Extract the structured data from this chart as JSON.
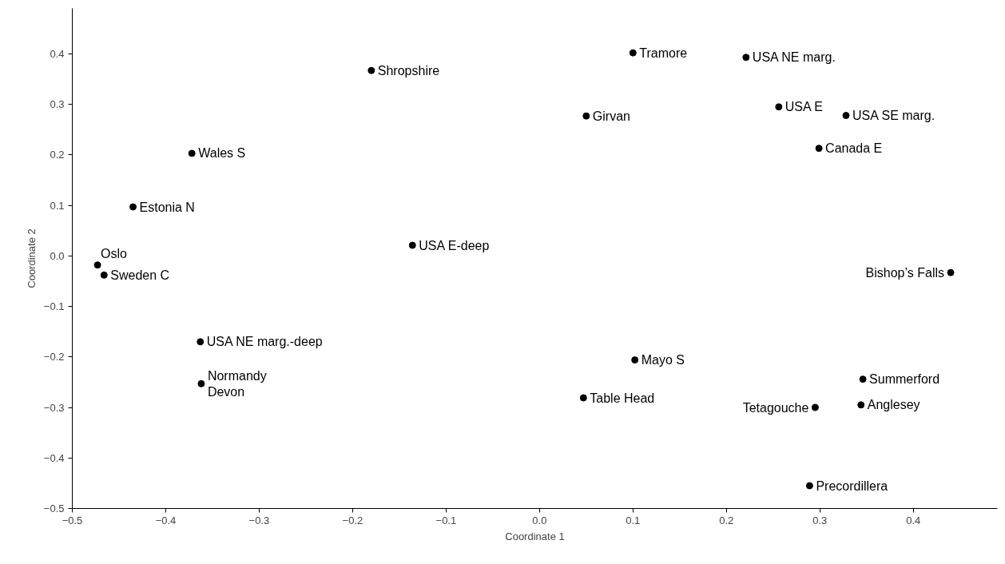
{
  "chart_data": {
    "type": "scatter",
    "xlabel": "Coordinate 1",
    "ylabel": "Coordinate 2",
    "xlim": [
      -0.5,
      0.49
    ],
    "ylim": [
      -0.5,
      0.49
    ],
    "xticks": [
      -0.5,
      -0.4,
      -0.3,
      -0.2,
      -0.1,
      {
        "value": 0,
        "label": "0.0"
      },
      0.1,
      0.2,
      0.3,
      0.4
    ],
    "yticks": [
      -0.5,
      -0.4,
      -0.3,
      -0.2,
      -0.1,
      {
        "value": 0,
        "label": "0.0"
      },
      0.1,
      0.2,
      0.3,
      0.4
    ],
    "grid": false,
    "marker": "circle",
    "series": [
      {
        "color": "#000000",
        "x": [
          -0.18,
          -0.372,
          -0.435,
          -0.473,
          -0.466,
          -0.136,
          -0.363,
          -0.362,
          0.1,
          0.05,
          0.221,
          0.256,
          0.328,
          0.299,
          0.102,
          0.047,
          0.44,
          0.346,
          0.344,
          0.295,
          0.289
        ],
        "values": [
          0.367,
          0.203,
          0.097,
          -0.018,
          -0.038,
          0.021,
          -0.17,
          -0.253,
          0.402,
          0.277,
          0.393,
          0.295,
          0.278,
          0.213,
          -0.206,
          -0.281,
          -0.033,
          -0.244,
          -0.295,
          -0.3,
          -0.455
        ]
      }
    ],
    "annotations": [
      {
        "text": "Shropshire",
        "x": -0.18,
        "y": 0.367
      },
      {
        "text": "Wales S",
        "x": -0.372,
        "y": 0.203
      },
      {
        "text": "Estonia N",
        "x": -0.435,
        "y": 0.097
      },
      {
        "text": "Oslo",
        "x": -0.473,
        "y": -0.018
      },
      {
        "text": "Sweden C",
        "x": -0.466,
        "y": -0.038
      },
      {
        "text": "USA E-deep",
        "x": -0.136,
        "y": 0.021
      },
      {
        "text": "USA NE marg.-deep",
        "x": -0.363,
        "y": -0.17
      },
      {
        "text": "Normandy\nDevon",
        "x": -0.362,
        "y": -0.253
      },
      {
        "text": "Tramore",
        "x": 0.1,
        "y": 0.402
      },
      {
        "text": "Girvan",
        "x": 0.05,
        "y": 0.277
      },
      {
        "text": "USA NE marg.",
        "x": 0.221,
        "y": 0.393
      },
      {
        "text": "USA E",
        "x": 0.256,
        "y": 0.295
      },
      {
        "text": "USA SE marg.",
        "x": 0.328,
        "y": 0.278
      },
      {
        "text": "Canada E",
        "x": 0.299,
        "y": 0.213
      },
      {
        "text": "Mayo S",
        "x": 0.102,
        "y": -0.206
      },
      {
        "text": "Table Head",
        "x": 0.047,
        "y": -0.281
      },
      {
        "text": "Bishop’s Falls",
        "x": 0.44,
        "y": -0.033
      },
      {
        "text": "Summerford",
        "x": 0.346,
        "y": -0.244
      },
      {
        "text": "Anglesey",
        "x": 0.344,
        "y": -0.295
      },
      {
        "text": "Tetagouche",
        "x": 0.295,
        "y": -0.3
      },
      {
        "text": "Precordillera",
        "x": 0.289,
        "y": -0.455
      }
    ]
  }
}
